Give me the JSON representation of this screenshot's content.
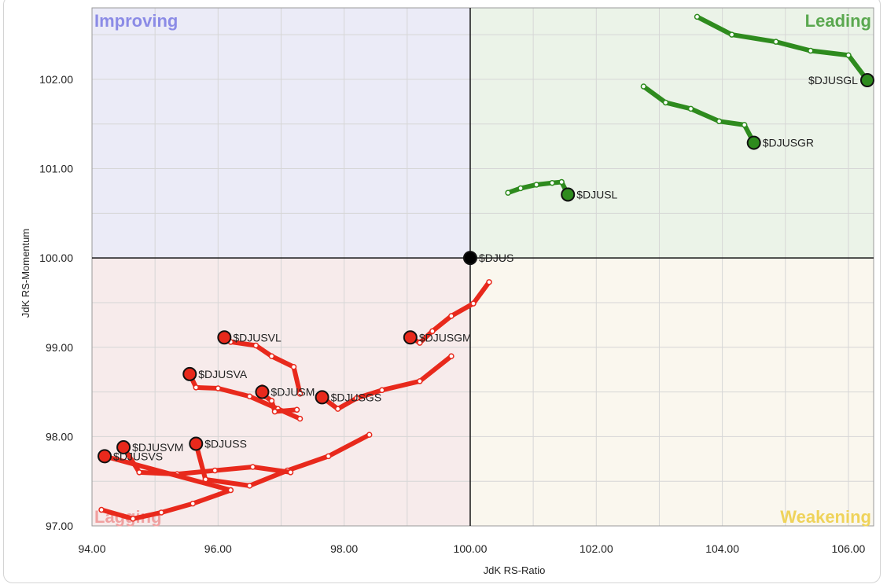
{
  "chart_data": {
    "type": "scatter",
    "subtype": "relative-rotation-graph",
    "xlabel": "JdK RS-Ratio",
    "ylabel": "JdK RS-Momentum",
    "xlim": [
      94,
      106.4
    ],
    "ylim": [
      97,
      102.8
    ],
    "x_ticks": [
      "94.00",
      "96.00",
      "98.00",
      "100.00",
      "102.00",
      "104.00",
      "106.00"
    ],
    "y_ticks": [
      "97.00",
      "98.00",
      "99.00",
      "100.00",
      "101.00",
      "102.00"
    ],
    "center": [
      100,
      100
    ],
    "grid": true,
    "quadrants": [
      {
        "name": "Improving",
        "position": "top-left",
        "bg": "#ebebf7",
        "label_color": "#8b8be6"
      },
      {
        "name": "Leading",
        "position": "top-right",
        "bg": "#ebf3e8",
        "label_color": "#5aa84f"
      },
      {
        "name": "Lagging",
        "position": "bottom-left",
        "bg": "#f7ebeb",
        "label_color": "#f0a0a0"
      },
      {
        "name": "Weakening",
        "position": "bottom-right",
        "bg": "#faf7ee",
        "label_color": "#efd35a"
      }
    ],
    "series": [
      {
        "name": "$DJUSGL",
        "color": "#2e8b1e",
        "tail": [
          [
            103.6,
            102.7
          ],
          [
            104.15,
            102.5
          ],
          [
            104.85,
            102.42
          ],
          [
            105.4,
            102.32
          ],
          [
            106.0,
            102.27
          ]
        ],
        "head": [
          106.3,
          101.99
        ]
      },
      {
        "name": "$DJUSGR",
        "color": "#2e8b1e",
        "tail": [
          [
            102.75,
            101.92
          ],
          [
            103.1,
            101.74
          ],
          [
            103.5,
            101.67
          ],
          [
            103.95,
            101.53
          ],
          [
            104.35,
            101.49
          ]
        ],
        "head": [
          104.5,
          101.29
        ]
      },
      {
        "name": "$DJUSL",
        "color": "#2e8b1e",
        "tail": [
          [
            100.6,
            100.73
          ],
          [
            100.8,
            100.78
          ],
          [
            101.05,
            100.82
          ],
          [
            101.3,
            100.84
          ],
          [
            101.45,
            100.85
          ]
        ],
        "head": [
          101.55,
          100.71
        ]
      },
      {
        "name": "$DJUSGM",
        "color": "#e8291c",
        "tail": [
          [
            100.3,
            99.73
          ],
          [
            100.05,
            99.49
          ],
          [
            99.7,
            99.35
          ],
          [
            99.4,
            99.18
          ],
          [
            99.2,
            99.05
          ]
        ],
        "head": [
          99.05,
          99.11
        ]
      },
      {
        "name": "$DJUSVL",
        "color": "#e8291c",
        "tail": [
          [
            97.3,
            98.48
          ],
          [
            97.2,
            98.78
          ],
          [
            96.85,
            98.9
          ],
          [
            96.6,
            99.02
          ],
          [
            96.2,
            99.06
          ]
        ],
        "head": [
          96.1,
          99.11
        ]
      },
      {
        "name": "$DJUSVA",
        "color": "#e8291c",
        "tail": [
          [
            97.3,
            98.2
          ],
          [
            96.95,
            98.31
          ],
          [
            96.5,
            98.45
          ],
          [
            96.0,
            98.54
          ],
          [
            95.65,
            98.55
          ]
        ],
        "head": [
          95.55,
          98.7
        ]
      },
      {
        "name": "$DJUSM",
        "color": "#e8291c",
        "tail": [
          [
            97.25,
            98.3
          ],
          [
            96.9,
            98.28
          ],
          [
            96.85,
            98.4
          ],
          [
            96.75,
            98.45
          ],
          [
            96.7,
            98.55
          ]
        ],
        "head": [
          96.7,
          98.5
        ]
      },
      {
        "name": "$DJUSGS",
        "color": "#e8291c",
        "tail": [
          [
            99.7,
            98.9
          ],
          [
            99.2,
            98.62
          ],
          [
            98.6,
            98.52
          ],
          [
            98.2,
            98.43
          ],
          [
            97.9,
            98.31
          ]
        ],
        "head": [
          97.65,
          98.44
        ]
      },
      {
        "name": "$DJUSS",
        "color": "#e8291c",
        "tail": [
          [
            98.4,
            98.02
          ],
          [
            97.75,
            97.78
          ],
          [
            97.1,
            97.62
          ],
          [
            96.5,
            97.45
          ],
          [
            95.8,
            97.52
          ]
        ],
        "head": [
          95.65,
          97.92
        ]
      },
      {
        "name": "$DJUSVM",
        "color": "#e8291c",
        "tail": [
          [
            97.15,
            97.6
          ],
          [
            96.55,
            97.66
          ],
          [
            95.95,
            97.62
          ],
          [
            95.35,
            97.58
          ],
          [
            94.75,
            97.6
          ]
        ],
        "head": [
          94.5,
          97.88
        ]
      },
      {
        "name": "$DJUSVS",
        "color": "#e8291c",
        "tail": [
          [
            94.15,
            97.18
          ],
          [
            94.65,
            97.08
          ],
          [
            95.1,
            97.15
          ],
          [
            95.6,
            97.25
          ],
          [
            96.2,
            97.4
          ]
        ],
        "head": [
          94.2,
          97.78
        ]
      },
      {
        "name": "$DJUS",
        "color": "#000000",
        "tail": [],
        "head": [
          100.0,
          100.0
        ]
      }
    ]
  }
}
